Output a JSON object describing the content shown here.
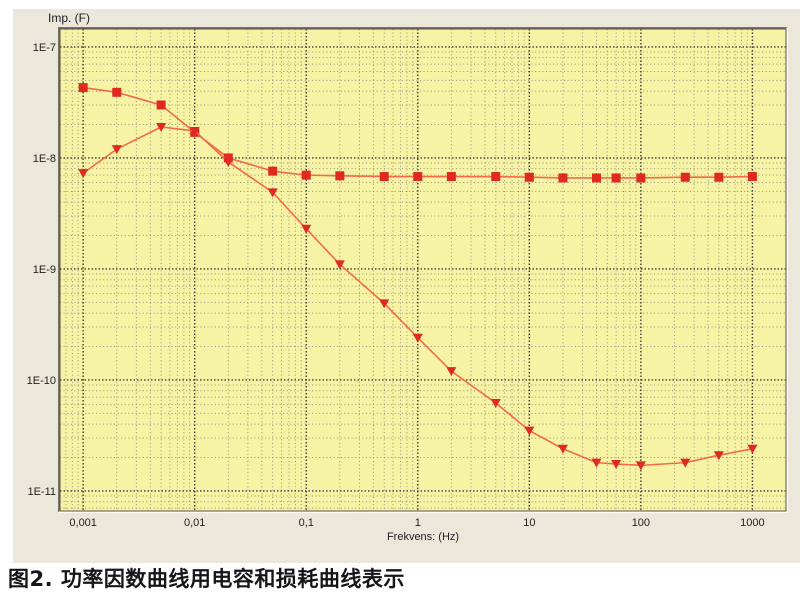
{
  "caption": "图2. 功率因数曲线用电容和损耗曲线表示",
  "panel": {
    "y_axis_title": "Imp. (F)",
    "x_axis_title": "Frekvens: (Hz)"
  },
  "chart_data": {
    "type": "line",
    "title": "",
    "xlabel": "Frekvens: (Hz)",
    "ylabel": "Imp. (F)",
    "x_scale": "log",
    "y_scale": "log",
    "xlim": [
      0.00062,
      2000
    ],
    "ylim": [
      6.6e-12,
      1.45e-07
    ],
    "x_tick_values": [
      0.001,
      0.01,
      0.1,
      1,
      10,
      100,
      1000
    ],
    "x_tick_labels": [
      "0,001",
      "0,01",
      "0,1",
      "1",
      "10",
      "100",
      "1000"
    ],
    "y_tick_values": [
      1e-07,
      1e-08,
      1e-09,
      1e-10,
      1e-11
    ],
    "y_tick_labels": [
      "1E-7",
      "1E-8",
      "1E-9",
      "1E-10",
      "1E-11"
    ],
    "grid": "log major+minor, dotted, both axes",
    "legend": "none",
    "x": [
      0.001,
      0.002,
      0.005,
      0.01,
      0.02,
      0.05,
      0.1,
      0.2,
      0.5,
      1,
      2,
      5,
      10,
      20,
      40,
      60,
      100,
      250,
      500,
      1000
    ],
    "series": [
      {
        "name": "capacitance-curve",
        "marker": "square",
        "values": [
          4.3e-08,
          3.9e-08,
          3e-08,
          1.7e-08,
          1e-08,
          7.6e-09,
          7e-09,
          6.9e-09,
          6.8e-09,
          6.8e-09,
          6.8e-09,
          6.8e-09,
          6.7e-09,
          6.6e-09,
          6.6e-09,
          6.6e-09,
          6.6e-09,
          6.7e-09,
          6.7e-09,
          6.8e-09
        ]
      },
      {
        "name": "loss-curve",
        "marker": "triangle-down",
        "values": [
          7.3e-09,
          1.2e-08,
          1.9e-08,
          1.75e-08,
          9.2e-09,
          4.9e-09,
          2.3e-09,
          1.1e-09,
          4.9e-10,
          2.4e-10,
          1.2e-10,
          6.2e-11,
          3.5e-11,
          2.4e-11,
          1.8e-11,
          1.75e-11,
          1.7e-11,
          1.8e-11,
          2.1e-11,
          2.4e-11
        ]
      }
    ],
    "colors": {
      "line": "#f26a4b",
      "marker": "#e02a21",
      "plot_bg": "#f7f3a4",
      "panel_bg": "#ebe7da",
      "grid_major": "#3c3c3c",
      "grid_minor": "#96917e",
      "frame_dark": "#76726a",
      "frame_light": "#fffef2",
      "tick_text": "#222222"
    }
  }
}
